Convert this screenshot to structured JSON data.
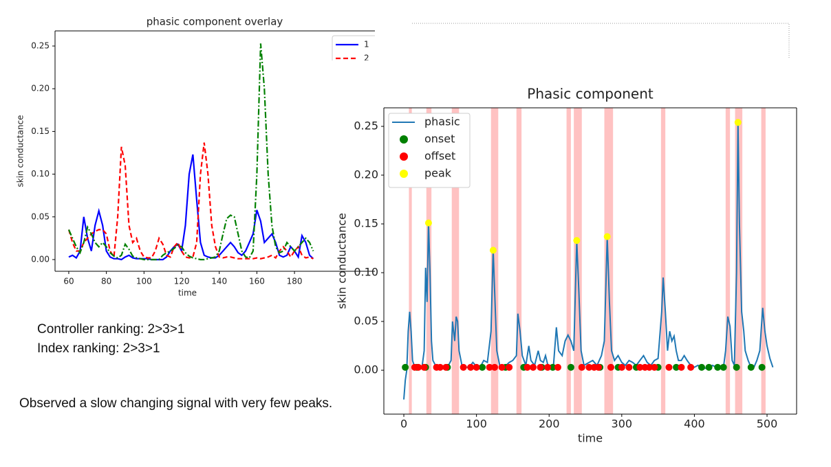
{
  "slide": {
    "controller_ranking": "Controller ranking: 2>3>1",
    "index_ranking": "Index ranking: 2>3>1",
    "observation": "Observed a slow changing signal with very few peaks."
  },
  "chart_data": [
    {
      "type": "line",
      "title": "phasic component overlay",
      "xlabel": "time",
      "ylabel": "skin conductance",
      "x": [
        60,
        62,
        64,
        66,
        68,
        70,
        72,
        74,
        76,
        78,
        80,
        82,
        84,
        86,
        88,
        90,
        92,
        94,
        96,
        98,
        100,
        102,
        104,
        106,
        108,
        110,
        112,
        114,
        116,
        118,
        120,
        122,
        124,
        126,
        128,
        130,
        132,
        134,
        136,
        138,
        140,
        142,
        144,
        146,
        148,
        150,
        152,
        154,
        156,
        158,
        160,
        162,
        164,
        166,
        168,
        170,
        172,
        174,
        176,
        178,
        180,
        182,
        184,
        186,
        188,
        190
      ],
      "series": [
        {
          "name": "1",
          "color": "#0000ff",
          "style": "solid",
          "values": [
            0.003,
            0.005,
            0.002,
            0.01,
            0.05,
            0.025,
            0.01,
            0.04,
            0.057,
            0.04,
            0.01,
            0.003,
            0.001,
            0.001,
            0.0,
            0.003,
            0.005,
            0.002,
            0.001,
            0.001,
            0.001,
            0.001,
            0.0,
            0.0,
            0.0,
            0.0,
            0.003,
            0.01,
            0.015,
            0.018,
            0.01,
            0.04,
            0.1,
            0.123,
            0.07,
            0.02,
            0.005,
            0.003,
            0.002,
            0.002,
            0.005,
            0.01,
            0.015,
            0.02,
            0.015,
            0.008,
            0.005,
            0.01,
            0.02,
            0.03,
            0.058,
            0.045,
            0.02,
            0.025,
            0.03,
            0.02,
            0.005,
            0.003,
            0.005,
            0.015,
            0.01,
            0.003,
            0.028,
            0.02,
            0.005,
            0.001
          ]
        },
        {
          "name": "2",
          "color": "#ff0000",
          "style": "dashed",
          "values": [
            0.035,
            0.02,
            0.01,
            0.01,
            0.02,
            0.025,
            0.03,
            0.033,
            0.035,
            0.035,
            0.03,
            0.01,
            0.003,
            0.05,
            0.132,
            0.11,
            0.04,
            0.02,
            0.025,
            0.01,
            0.003,
            0.002,
            0.002,
            0.01,
            0.025,
            0.018,
            0.005,
            0.003,
            0.015,
            0.02,
            0.01,
            0.003,
            0.002,
            0.003,
            0.02,
            0.1,
            0.137,
            0.1,
            0.04,
            0.015,
            0.003,
            0.002,
            0.003,
            0.003,
            0.002,
            0.001,
            0.001,
            0.001,
            0.001,
            0.001,
            0.002,
            0.001,
            0.002,
            0.003,
            0.005,
            0.002,
            0.01,
            0.015,
            0.01,
            0.003,
            0.01,
            0.015,
            0.005,
            0.002,
            0.003,
            0.001
          ]
        },
        {
          "color": "#008000",
          "style": "dashdot",
          "values": [
            0.035,
            0.025,
            0.015,
            0.008,
            0.02,
            0.038,
            0.03,
            0.02,
            0.015,
            0.02,
            0.015,
            0.008,
            0.004,
            0.002,
            0.005,
            0.018,
            0.012,
            0.004,
            0.002,
            0.001,
            0.0,
            0.0,
            0.0,
            0.0,
            0.0,
            0.005,
            0.008,
            0.01,
            0.013,
            0.017,
            0.015,
            0.008,
            0.004,
            0.002,
            0.001,
            0.0,
            0.0,
            0.001,
            0.002,
            0.003,
            0.01,
            0.03,
            0.048,
            0.052,
            0.05,
            0.03,
            0.01,
            0.003,
            0.002,
            0.01,
            0.1,
            0.253,
            0.2,
            0.1,
            0.04,
            0.015,
            0.008,
            0.01,
            0.02,
            0.015,
            0.01,
            0.015,
            0.02,
            0.025,
            0.02,
            0.01
          ]
        }
      ],
      "xlim": [
        52.7,
        193.5
      ],
      "ylim": [
        -0.0137,
        0.2677
      ],
      "xticks": [
        60,
        80,
        100,
        120,
        140,
        160,
        180
      ],
      "yticks": [
        {
          "value": 0,
          "label": "0.00"
        },
        {
          "value": 0.05,
          "label": "0.05"
        },
        {
          "value": 0.1,
          "label": "0.10"
        },
        {
          "value": 0.15,
          "label": "0.15"
        },
        {
          "value": 0.2,
          "label": "0.20"
        },
        {
          "value": 0.25,
          "label": "0.25"
        }
      ],
      "legend": "upper right"
    },
    {
      "type": "line",
      "title": "Phasic component",
      "xlabel": "time",
      "ylabel": "skin conductance",
      "series": [
        {
          "name": "phasic",
          "color": "#1f77b4",
          "style": "solid",
          "x": [
            0,
            2,
            4,
            6,
            8,
            10,
            12,
            15,
            20,
            25,
            28,
            30,
            32,
            34,
            36,
            38,
            40,
            45,
            50,
            55,
            60,
            65,
            67,
            70,
            72,
            74,
            76,
            80,
            85,
            90,
            95,
            100,
            105,
            110,
            115,
            120,
            123,
            126,
            128,
            132,
            138,
            145,
            150,
            155,
            157,
            160,
            163,
            168,
            172,
            175,
            180,
            185,
            188,
            192,
            195,
            198,
            202,
            206,
            210,
            213,
            218,
            222,
            226,
            230,
            234,
            238,
            241,
            244,
            248,
            255,
            260,
            266,
            272,
            276,
            280,
            283,
            286,
            290,
            295,
            300,
            305,
            310,
            315,
            320,
            325,
            330,
            335,
            340,
            345,
            350,
            355,
            357,
            360,
            363,
            366,
            369,
            372,
            375,
            378,
            382,
            386,
            390,
            395,
            400,
            405,
            410,
            415,
            420,
            425,
            430,
            435,
            440,
            443,
            446,
            449,
            452,
            455,
            458,
            460,
            462,
            465,
            468,
            470,
            474,
            478,
            482,
            486,
            490,
            494,
            497,
            500,
            504,
            508
          ],
          "values": [
            -0.03,
            -0.01,
            0.0,
            0.04,
            0.06,
            0.04,
            0.01,
            0.003,
            0.005,
            0.003,
            0.02,
            0.105,
            0.07,
            0.152,
            0.1,
            0.03,
            0.01,
            0.003,
            0.005,
            0.003,
            0.003,
            0.01,
            0.05,
            0.03,
            0.055,
            0.05,
            0.02,
            0.005,
            0.003,
            0.003,
            0.008,
            0.004,
            0.003,
            0.01,
            0.008,
            0.04,
            0.124,
            0.06,
            0.02,
            0.005,
            0.003,
            0.008,
            0.01,
            0.015,
            0.058,
            0.04,
            0.015,
            0.005,
            0.025,
            0.01,
            0.005,
            0.02,
            0.01,
            0.008,
            0.015,
            0.006,
            0.003,
            0.005,
            0.044,
            0.02,
            0.015,
            0.03,
            0.036,
            0.03,
            0.02,
            0.133,
            0.08,
            0.02,
            0.005,
            0.008,
            0.01,
            0.005,
            0.015,
            0.03,
            0.137,
            0.07,
            0.02,
            0.01,
            0.015,
            0.008,
            0.005,
            0.01,
            0.008,
            0.005,
            0.01,
            0.015,
            0.008,
            0.005,
            0.01,
            0.012,
            0.06,
            0.095,
            0.06,
            0.02,
            0.04,
            0.03,
            0.035,
            0.02,
            0.01,
            0.01,
            0.015,
            0.01,
            0.005,
            0.003,
            0.005,
            0.002,
            0.002,
            0.003,
            0.005,
            0.003,
            0.002,
            0.003,
            0.02,
            0.055,
            0.045,
            0.01,
            0.005,
            0.1,
            0.254,
            0.15,
            0.06,
            0.04,
            0.02,
            0.01,
            0.003,
            0.003,
            0.01,
            0.02,
            0.064,
            0.04,
            0.025,
            0.012,
            0.003
          ]
        },
        {
          "name": "onset",
          "color": "#008000",
          "style": "scatter",
          "x": [
            2,
            18,
            30,
            60,
            108,
            140,
            165,
            190,
            205,
            230,
            270,
            295,
            320,
            350,
            375,
            410,
            420,
            432,
            440,
            458,
            478,
            493
          ],
          "values": [
            0.003,
            0.003,
            0.003,
            0.003,
            0.003,
            0.003,
            0.003,
            0.003,
            0.003,
            0.003,
            0.003,
            0.003,
            0.003,
            0.003,
            0.003,
            0.003,
            0.003,
            0.003,
            0.003,
            0.003,
            0.003,
            0.003
          ]
        },
        {
          "name": "offset",
          "color": "#ff0000",
          "style": "scatter",
          "x": [
            15,
            20,
            28,
            45,
            50,
            58,
            82,
            92,
            100,
            118,
            125,
            135,
            145,
            170,
            178,
            188,
            198,
            212,
            245,
            255,
            262,
            268,
            285,
            300,
            310,
            325,
            332,
            338,
            345,
            365,
            382,
            395
          ],
          "values": [
            0.003,
            0.003,
            0.003,
            0.003,
            0.003,
            0.003,
            0.003,
            0.003,
            0.003,
            0.003,
            0.003,
            0.003,
            0.003,
            0.003,
            0.003,
            0.003,
            0.003,
            0.003,
            0.003,
            0.003,
            0.003,
            0.003,
            0.003,
            0.003,
            0.003,
            0.003,
            0.003,
            0.003,
            0.003,
            0.003,
            0.003,
            0.003
          ]
        },
        {
          "name": "peak",
          "color": "#ffff00",
          "style": "scatter",
          "x": [
            34,
            123,
            238,
            280,
            460
          ],
          "values": [
            0.151,
            0.123,
            0.133,
            0.137,
            0.254
          ]
        }
      ],
      "spans": [
        [
          7,
          11
        ],
        [
          31,
          38
        ],
        [
          66,
          76
        ],
        [
          120,
          130
        ],
        [
          155,
          162
        ],
        [
          224,
          230
        ],
        [
          234,
          245
        ],
        [
          276,
          288
        ],
        [
          354,
          360
        ],
        [
          443,
          449
        ],
        [
          456,
          466
        ],
        [
          492,
          498
        ]
      ],
      "span_color": "#ff9999",
      "xlim": [
        -27.5,
        540.7
      ],
      "ylim": [
        -0.045,
        0.269
      ],
      "xticks": [
        0,
        100,
        200,
        300,
        400,
        500
      ],
      "yticks": [
        {
          "value": 0,
          "label": "0.00"
        },
        {
          "value": 0.05,
          "label": "0.05"
        },
        {
          "value": 0.1,
          "label": "0.10"
        },
        {
          "value": 0.15,
          "label": "0.15"
        },
        {
          "value": 0.2,
          "label": "0.20"
        },
        {
          "value": 0.25,
          "label": "0.25"
        }
      ],
      "legend": "upper left"
    }
  ]
}
